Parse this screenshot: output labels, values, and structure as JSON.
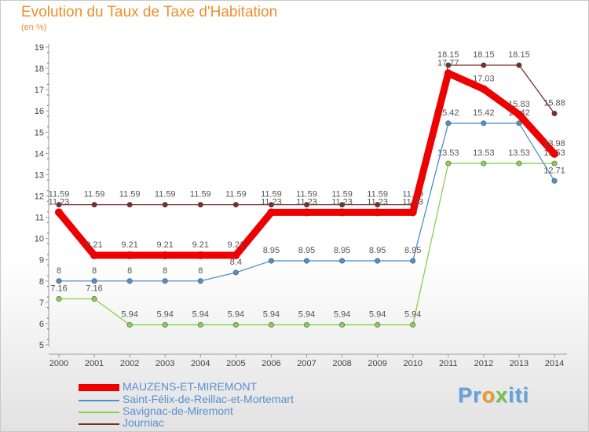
{
  "title": "Evolution du Taux de Taxe d'Habitation",
  "subtitle": "(en %)",
  "logo": {
    "pre": "Pr",
    "o": "o",
    "mid": "",
    "x": "x",
    "post": "iti"
  },
  "chart_data": {
    "type": "line",
    "x": [
      2000,
      2001,
      2002,
      2003,
      2004,
      2005,
      2006,
      2007,
      2008,
      2009,
      2010,
      2011,
      2012,
      2013,
      2014
    ],
    "ylim": [
      5,
      19
    ],
    "yticks": [
      5,
      6,
      7,
      8,
      9,
      10,
      11,
      12,
      13,
      14,
      15,
      16,
      17,
      18,
      19
    ],
    "grid": false,
    "legend_position": "bottom-left",
    "series": [
      {
        "name": "MAUZENS-ET-MIREMONT",
        "color": "#ee0000",
        "values": [
          11.23,
          9.21,
          9.21,
          9.21,
          9.21,
          9.21,
          11.23,
          11.23,
          11.23,
          11.23,
          11.23,
          17.77,
          17.03,
          15.83,
          13.98
        ]
      },
      {
        "name": "Saint-Félix-de-Reillac-et-Mortemart",
        "color": "#4f8fcb",
        "values": [
          8,
          8,
          8,
          8,
          8,
          8.4,
          8.95,
          8.95,
          8.95,
          8.95,
          8.95,
          15.42,
          15.42,
          15.42,
          12.71
        ]
      },
      {
        "name": "Savignac-de-Miremont",
        "color": "#88d050",
        "values": [
          7.16,
          7.16,
          5.94,
          5.94,
          5.94,
          5.94,
          5.94,
          5.94,
          5.94,
          5.94,
          5.94,
          13.53,
          13.53,
          13.53,
          13.53
        ]
      },
      {
        "name": "Journiac",
        "color": "#7a2b2b",
        "values": [
          11.59,
          11.59,
          11.59,
          11.59,
          11.59,
          11.59,
          11.59,
          11.59,
          11.59,
          11.59,
          11.59,
          18.15,
          18.15,
          18.15,
          15.88
        ]
      }
    ]
  }
}
